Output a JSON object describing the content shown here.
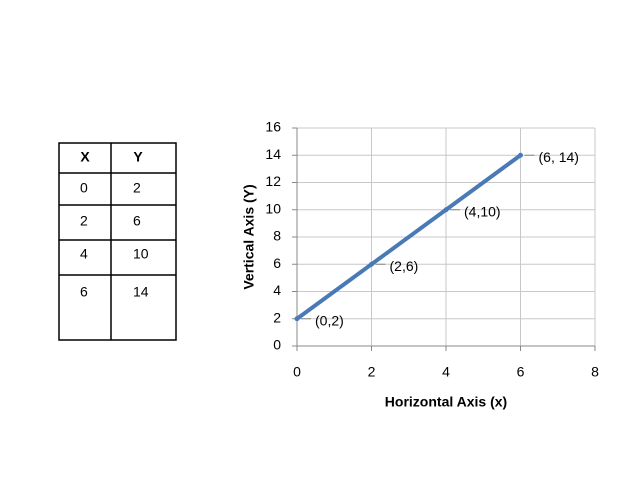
{
  "table": {
    "header": [
      "X",
      "Y"
    ],
    "rows": [
      [
        0,
        2
      ],
      [
        2,
        6
      ],
      [
        4,
        10
      ],
      [
        6,
        14
      ]
    ]
  },
  "chart_data": {
    "type": "line",
    "x_label": "Horizontal Axis (x)",
    "y_label": "Vertical Axis (Y)",
    "x": [
      0,
      2,
      4,
      6
    ],
    "series": [
      {
        "values": [
          2,
          6,
          10,
          14
        ],
        "color": "#4a7ab5",
        "value_labels": [
          "(0,2)",
          "(2,6)",
          "(4,10)",
          "(6, 14)"
        ]
      }
    ],
    "xlim": [
      0,
      8
    ],
    "xticks": [
      0,
      2,
      4,
      6,
      8
    ],
    "ylim": [
      0,
      16
    ],
    "yticks": [
      0,
      2,
      4,
      6,
      8,
      10,
      12,
      14,
      16
    ],
    "grid": true
  }
}
